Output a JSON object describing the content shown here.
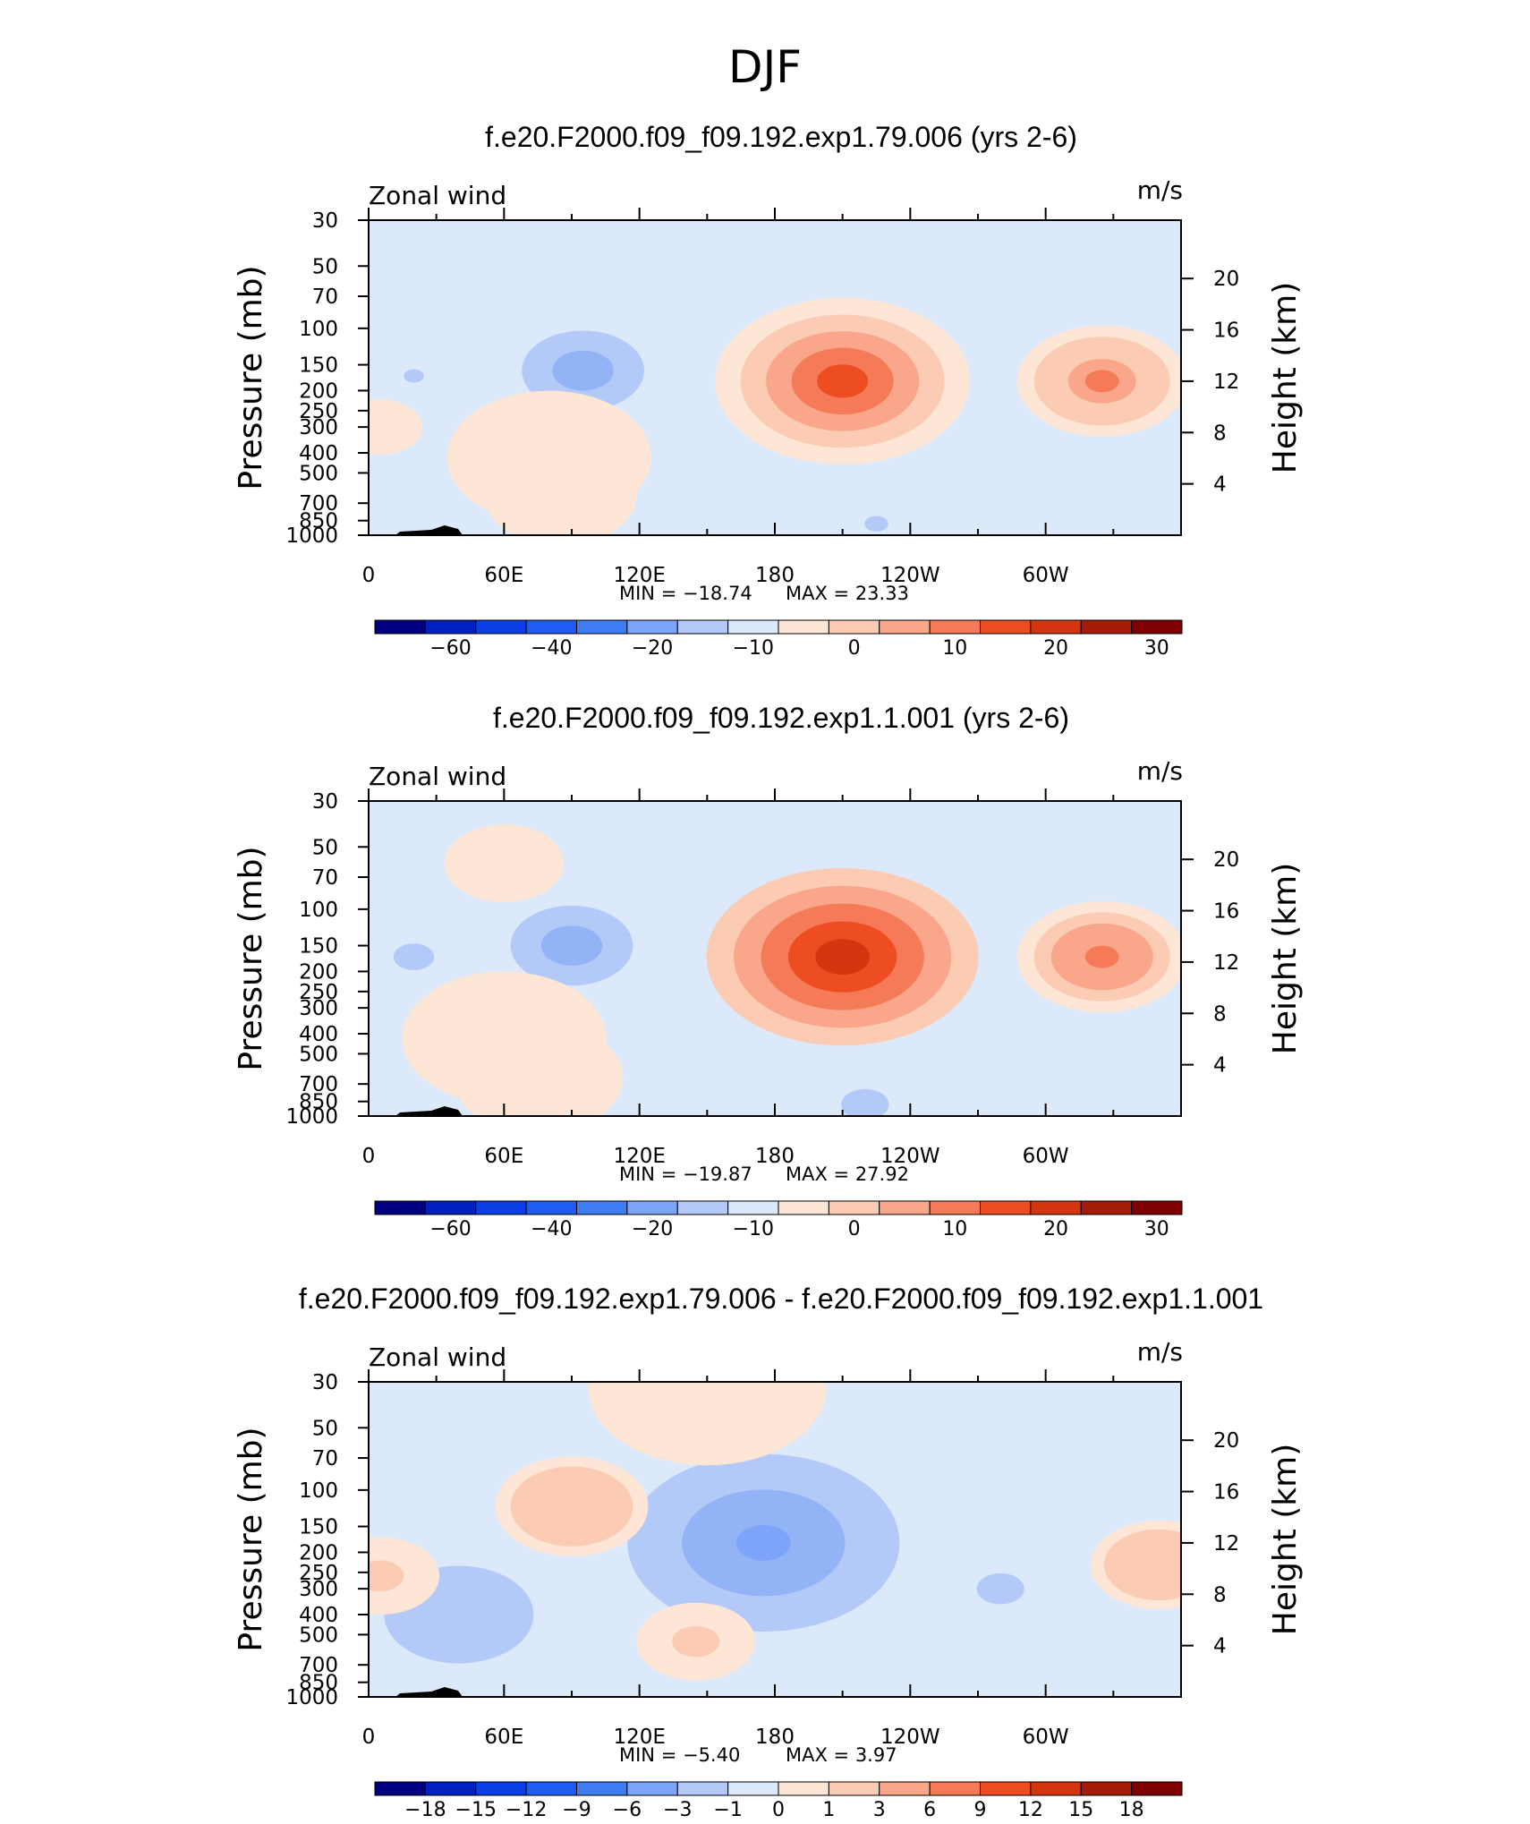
{
  "figure_title": "DJF",
  "chart_data": [
    {
      "type": "heatmap",
      "title": "f.e20.F2000.f09_f09.192.exp1.79.006 (yrs 2-6)",
      "variable_label": "Zonal wind",
      "units": "m/s",
      "ylabel": "Pressure (mb)",
      "y2label": "Height (km)",
      "xticks": [
        "0",
        "60E",
        "120E",
        "180",
        "120W",
        "60W"
      ],
      "yticks": [
        "30",
        "50",
        "70",
        "100",
        "150",
        "200",
        "250",
        "300",
        "400",
        "500",
        "700",
        "850",
        "1000"
      ],
      "y2ticks": [
        "20",
        "16",
        "12",
        "8",
        "4"
      ],
      "min_label": "MIN  =  −18.74",
      "max_label": "MAX  =   23.33",
      "min": -18.74,
      "max": 23.33,
      "colorbar_levels": [
        "−60",
        "−40",
        "−20",
        "−10",
        "0",
        "10",
        "20",
        "30"
      ],
      "blobs": [
        {
          "lon": 95,
          "p": 160,
          "value": -13,
          "size": 9
        },
        {
          "lon": 20,
          "p": 170,
          "value": -6,
          "size": 6
        },
        {
          "lon": 210,
          "p": 180,
          "value": 21,
          "size": 15
        },
        {
          "lon": 325,
          "p": 180,
          "value": 16,
          "size": 10
        },
        {
          "lon": 85,
          "p": 640,
          "value": 5,
          "size": 9
        },
        {
          "lon": 225,
          "p": 880,
          "value": -6,
          "size": 7
        },
        {
          "lon": 5,
          "p": 300,
          "value": 4,
          "size": 5
        },
        {
          "lon": 80,
          "p": 420,
          "value": 2,
          "size": 12
        }
      ]
    },
    {
      "type": "heatmap",
      "title": "f.e20.F2000.f09_f09.192.exp1.1.001 (yrs 2-6)",
      "variable_label": "Zonal wind",
      "units": "m/s",
      "ylabel": "Pressure (mb)",
      "y2label": "Height (km)",
      "xticks": [
        "0",
        "60E",
        "120E",
        "180",
        "120W",
        "60W"
      ],
      "yticks": [
        "30",
        "50",
        "70",
        "100",
        "150",
        "200",
        "250",
        "300",
        "400",
        "500",
        "700",
        "850",
        "1000"
      ],
      "y2ticks": [
        "20",
        "16",
        "12",
        "8",
        "4"
      ],
      "min_label": "MIN  =  −19.87",
      "max_label": "MAX  =   27.92",
      "min": -19.87,
      "max": 27.92,
      "colorbar_levels": [
        "−60",
        "−40",
        "−20",
        "−10",
        "0",
        "10",
        "20",
        "30"
      ],
      "blobs": [
        {
          "lon": 90,
          "p": 150,
          "value": -14,
          "size": 9
        },
        {
          "lon": 20,
          "p": 170,
          "value": -7,
          "size": 6
        },
        {
          "lon": 210,
          "p": 170,
          "value": 25,
          "size": 16
        },
        {
          "lon": 325,
          "p": 170,
          "value": 17,
          "size": 10
        },
        {
          "lon": 75,
          "p": 650,
          "value": 6,
          "size": 10
        },
        {
          "lon": 220,
          "p": 880,
          "value": -7,
          "size": 7
        },
        {
          "lon": 60,
          "p": 60,
          "value": 2,
          "size": 7
        },
        {
          "lon": 60,
          "p": 420,
          "value": 2,
          "size": 12
        }
      ]
    },
    {
      "type": "heatmap",
      "title": "f.e20.F2000.f09_f09.192.exp1.79.006 - f.e20.F2000.f09_f09.192.exp1.1.001",
      "variable_label": "Zonal wind",
      "units": "m/s",
      "ylabel": "Pressure (mb)",
      "y2label": "Height (km)",
      "xticks": [
        "0",
        "60E",
        "120E",
        "180",
        "120W",
        "60W"
      ],
      "yticks": [
        "30",
        "50",
        "70",
        "100",
        "150",
        "200",
        "250",
        "300",
        "400",
        "500",
        "700",
        "850",
        "1000"
      ],
      "y2ticks": [
        "20",
        "16",
        "12",
        "8",
        "4"
      ],
      "min_label": "MIN  =    −5.40",
      "max_label": "MAX  =    3.97",
      "min": -5.4,
      "max": 3.97,
      "colorbar_levels": [
        "−18",
        "−15",
        "−12",
        "−9",
        "−6",
        "−3",
        "−1",
        "0",
        "1",
        "3",
        "6",
        "9",
        "12",
        "15",
        "18"
      ],
      "blobs": [
        {
          "lon": 175,
          "p": 180,
          "value": -5,
          "size": 16
        },
        {
          "lon": 40,
          "p": 400,
          "value": -2.5,
          "size": 11
        },
        {
          "lon": 90,
          "p": 120,
          "value": 2.5,
          "size": 9
        },
        {
          "lon": 350,
          "p": 230,
          "value": 2.5,
          "size": 8
        },
        {
          "lon": 5,
          "p": 260,
          "value": 1.5,
          "size": 7
        },
        {
          "lon": 145,
          "p": 540,
          "value": 1.5,
          "size": 7
        },
        {
          "lon": 280,
          "p": 300,
          "value": -1.5,
          "size": 7
        },
        {
          "lon": 150,
          "p": 32,
          "value": 0.8,
          "size": 14
        }
      ]
    }
  ]
}
